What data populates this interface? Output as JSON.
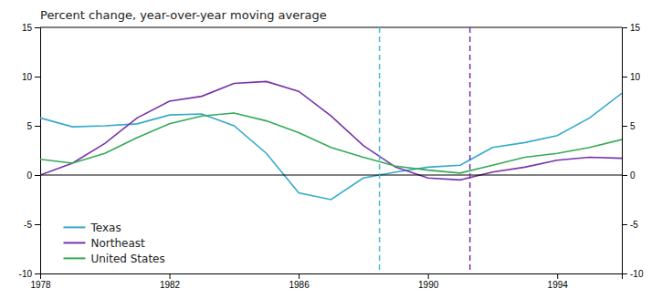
{
  "chart_data": {
    "type": "line",
    "title": "Percent change, year-over-year moving average",
    "x": [
      1978,
      1979,
      1980,
      1981,
      1982,
      1983,
      1984,
      1985,
      1986,
      1987,
      1988,
      1989,
      1990,
      1991,
      1992,
      1993,
      1994,
      1995,
      1996
    ],
    "series": [
      {
        "name": "Texas",
        "color": "#33AACC",
        "values": [
          5.8,
          4.9,
          5.0,
          5.2,
          6.1,
          6.2,
          5.0,
          2.2,
          -1.8,
          -2.5,
          -0.3,
          0.3,
          0.8,
          1.0,
          2.8,
          3.3,
          4.0,
          5.8,
          8.3
        ]
      },
      {
        "name": "Northeast",
        "color": "#7733AA",
        "values": [
          0.0,
          1.2,
          3.2,
          5.8,
          7.5,
          8.0,
          9.3,
          9.5,
          8.5,
          6.0,
          3.0,
          0.8,
          -0.3,
          -0.5,
          0.3,
          0.8,
          1.5,
          1.8,
          1.7
        ]
      },
      {
        "name": "United States",
        "color": "#33AA55",
        "values": [
          1.6,
          1.2,
          2.2,
          3.8,
          5.2,
          6.0,
          6.3,
          5.5,
          4.3,
          2.8,
          1.8,
          0.9,
          0.5,
          0.2,
          1.0,
          1.8,
          2.2,
          2.8,
          3.6
        ]
      }
    ],
    "vlines": [
      {
        "x": 1988.5,
        "color": "#44BBCC",
        "line_style": "dashed"
      },
      {
        "x": 1991.3,
        "color": "#7733AA",
        "line_style": "dashed"
      }
    ],
    "hlines": [
      {
        "y": 0,
        "color": "black"
      }
    ],
    "xlim": [
      1978,
      1996
    ],
    "xticks": [
      1978,
      1982,
      1986,
      1990,
      1994
    ],
    "ylim": [
      -10,
      15
    ],
    "yticks": [
      -10,
      -5,
      0,
      5,
      10,
      15
    ],
    "y2lim": [
      -10,
      15
    ],
    "y2ticks": [
      -10,
      -5,
      0,
      5,
      10,
      15
    ],
    "grid": false,
    "legend": "lower left"
  }
}
